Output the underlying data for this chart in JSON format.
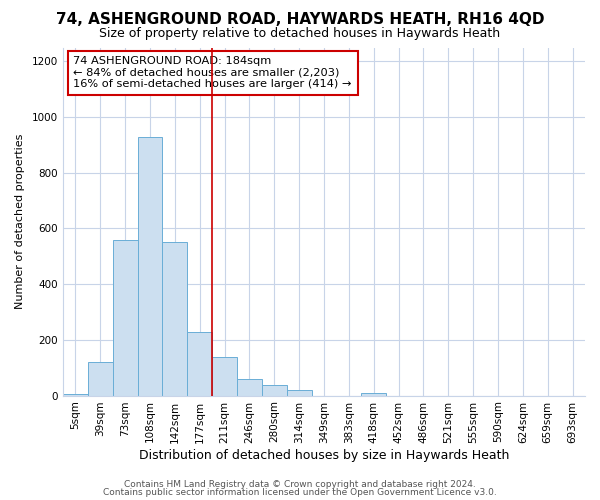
{
  "title": "74, ASHENGROUND ROAD, HAYWARDS HEATH, RH16 4QD",
  "subtitle": "Size of property relative to detached houses in Haywards Heath",
  "xlabel": "Distribution of detached houses by size in Haywards Heath",
  "ylabel": "Number of detached properties",
  "bar_labels": [
    "5sqm",
    "39sqm",
    "73sqm",
    "108sqm",
    "142sqm",
    "177sqm",
    "211sqm",
    "246sqm",
    "280sqm",
    "314sqm",
    "349sqm",
    "383sqm",
    "418sqm",
    "452sqm",
    "486sqm",
    "521sqm",
    "555sqm",
    "590sqm",
    "624sqm",
    "659sqm",
    "693sqm"
  ],
  "bar_values": [
    5,
    120,
    560,
    930,
    550,
    230,
    140,
    58,
    37,
    20,
    0,
    0,
    8,
    0,
    0,
    0,
    0,
    0,
    0,
    0,
    0
  ],
  "bar_color": "#ccdff0",
  "bar_edge_color": "#6aaed6",
  "vline_x": 5.5,
  "vline_color": "#cc0000",
  "annotation_text": "74 ASHENGROUND ROAD: 184sqm\n← 84% of detached houses are smaller (2,203)\n16% of semi-detached houses are larger (414) →",
  "annotation_box_color": "#ffffff",
  "annotation_box_edge": "#cc0000",
  "ylim": [
    0,
    1250
  ],
  "yticks": [
    0,
    200,
    400,
    600,
    800,
    1000,
    1200
  ],
  "footnote1": "Contains HM Land Registry data © Crown copyright and database right 2024.",
  "footnote2": "Contains public sector information licensed under the Open Government Licence v3.0.",
  "bg_color": "#ffffff",
  "plot_bg_color": "#ffffff",
  "title_fontsize": 11,
  "subtitle_fontsize": 9,
  "xlabel_fontsize": 9,
  "ylabel_fontsize": 8,
  "tick_fontsize": 7.5,
  "footnote_fontsize": 6.5,
  "grid_color": "#c8d4e8"
}
